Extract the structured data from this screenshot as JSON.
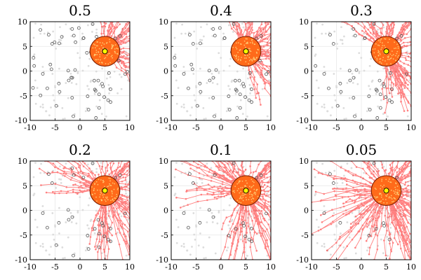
{
  "chart_data": [
    {
      "type": "scatter",
      "title": "0.5",
      "xlim": [
        -10,
        10
      ],
      "ylim": [
        -10,
        10
      ],
      "xticks": [
        -10,
        -5,
        0,
        5,
        10
      ],
      "yticks": [
        -10,
        -5,
        0,
        5,
        10
      ],
      "grid": true,
      "legend": "none",
      "source": [
        5,
        4
      ],
      "source_radius": 3
    },
    {
      "type": "scatter",
      "title": "0.4",
      "xlim": [
        -10,
        10
      ],
      "ylim": [
        -10,
        10
      ],
      "xticks": [
        -10,
        -5,
        0,
        5,
        10
      ],
      "yticks": [
        -10,
        -5,
        0,
        5,
        10
      ],
      "grid": true,
      "legend": "none",
      "source": [
        5,
        4
      ],
      "source_radius": 3
    },
    {
      "type": "scatter",
      "title": "0.3",
      "xlim": [
        -10,
        10
      ],
      "ylim": [
        -10,
        10
      ],
      "xticks": [
        -10,
        -5,
        0,
        5,
        10
      ],
      "yticks": [
        -10,
        -5,
        0,
        5,
        10
      ],
      "grid": true,
      "legend": "none",
      "source": [
        5,
        4
      ],
      "source_radius": 3
    },
    {
      "type": "scatter",
      "title": "0.2",
      "xlim": [
        -10,
        10
      ],
      "ylim": [
        -10,
        10
      ],
      "xticks": [
        -10,
        -5,
        0,
        5,
        10
      ],
      "yticks": [
        -10,
        -5,
        0,
        5,
        10
      ],
      "grid": true,
      "legend": "none",
      "source": [
        5,
        4
      ],
      "source_radius": 3
    },
    {
      "type": "scatter",
      "title": "0.1",
      "xlim": [
        -10,
        10
      ],
      "ylim": [
        -10,
        10
      ],
      "xticks": [
        -10,
        -5,
        0,
        5,
        10
      ],
      "yticks": [
        -10,
        -5,
        0,
        5,
        10
      ],
      "grid": true,
      "legend": "none",
      "source": [
        5,
        4
      ],
      "source_radius": 3
    },
    {
      "type": "scatter",
      "title": "0.05",
      "xlim": [
        -10,
        10
      ],
      "ylim": [
        -10,
        10
      ],
      "xticks": [
        -10,
        -5,
        0,
        5,
        10
      ],
      "yticks": [
        -10,
        -5,
        0,
        5,
        10
      ],
      "grid": true,
      "legend": "none",
      "source": [
        5,
        4
      ],
      "source_radius": 3
    }
  ],
  "colors": {
    "trajectory": "#ff1a1a",
    "disk_fill": "#ff6a1a",
    "disk_edge": "#7a1f00",
    "speckle": "#ffd27a",
    "source_dot": "#ffff00",
    "open_marker": "#555555",
    "grid": "#e6e6e6"
  }
}
